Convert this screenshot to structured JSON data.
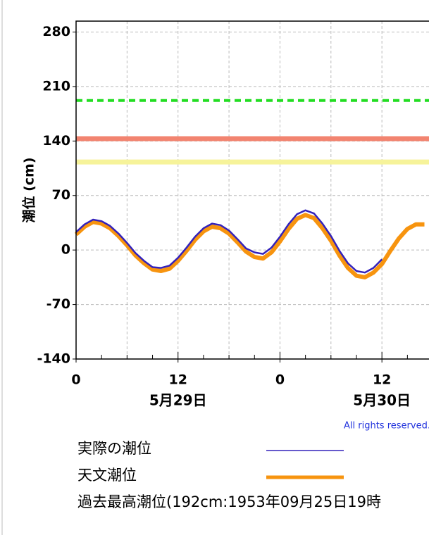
{
  "chart_data": {
    "type": "line",
    "y_label": "潮位 (cm)",
    "x": [
      0,
      1,
      2,
      3,
      4,
      5,
      6,
      7,
      8,
      9,
      10,
      11,
      12,
      13,
      14,
      15,
      16,
      17,
      18,
      19,
      20,
      21,
      22,
      23,
      24,
      25,
      26,
      27,
      28,
      29,
      30,
      31,
      32,
      33,
      34,
      35,
      36,
      37,
      38,
      39,
      40,
      41
    ],
    "series": [
      {
        "name": "天文潮位",
        "color": "#f7940f",
        "width": 6,
        "values": [
          20,
          30,
          36,
          34,
          28,
          18,
          6,
          -7,
          -17,
          -25,
          -27,
          -24,
          -14,
          -1,
          13,
          24,
          30,
          28,
          21,
          10,
          -2,
          -9,
          -11,
          -3,
          11,
          27,
          40,
          45,
          41,
          28,
          12,
          -7,
          -23,
          -33,
          -35,
          -29,
          -18,
          -1,
          15,
          27,
          33,
          33
        ]
      },
      {
        "name": "実際の潮位",
        "color": "#3322bb",
        "width": 2.5,
        "values": [
          23,
          33,
          39,
          37,
          31,
          21,
          9,
          -4,
          -14,
          -22,
          -23,
          -20,
          -10,
          3,
          17,
          28,
          34,
          32,
          25,
          14,
          2,
          -3,
          -5,
          3,
          17,
          33,
          46,
          51,
          47,
          34,
          18,
          -1,
          -17,
          -27,
          -29,
          -23,
          -12,
          null,
          null,
          null,
          null,
          null
        ]
      }
    ],
    "levels": [
      {
        "name": "過去最高潮位(192cm:1953年09月25日19時",
        "value": 192,
        "color": "#22dd22",
        "dash": true
      },
      {
        "value": 143,
        "color": "#f28470",
        "dash": false
      },
      {
        "value": 113,
        "color": "#f6f39a",
        "dash": false
      }
    ],
    "xlim": [
      0,
      41.5
    ],
    "xticks": [
      0,
      12,
      {
        "value": 24,
        "label": "0"
      },
      {
        "value": 36,
        "label": "12"
      }
    ],
    "x_grid_lines": [
      6,
      12,
      18,
      24,
      30,
      36
    ],
    "x_minor_ticks": [
      3,
      6,
      9,
      15,
      18,
      21,
      27,
      30,
      33,
      39
    ],
    "day_labels": [
      {
        "value": 12,
        "label": "5月29日"
      },
      {
        "value": 36,
        "label": "5月30日"
      }
    ],
    "ylim": [
      -140,
      294
    ],
    "yticks": [
      -140,
      -70,
      0,
      70,
      140,
      210,
      280
    ],
    "grid": true,
    "copyright": "All rights reserved."
  }
}
